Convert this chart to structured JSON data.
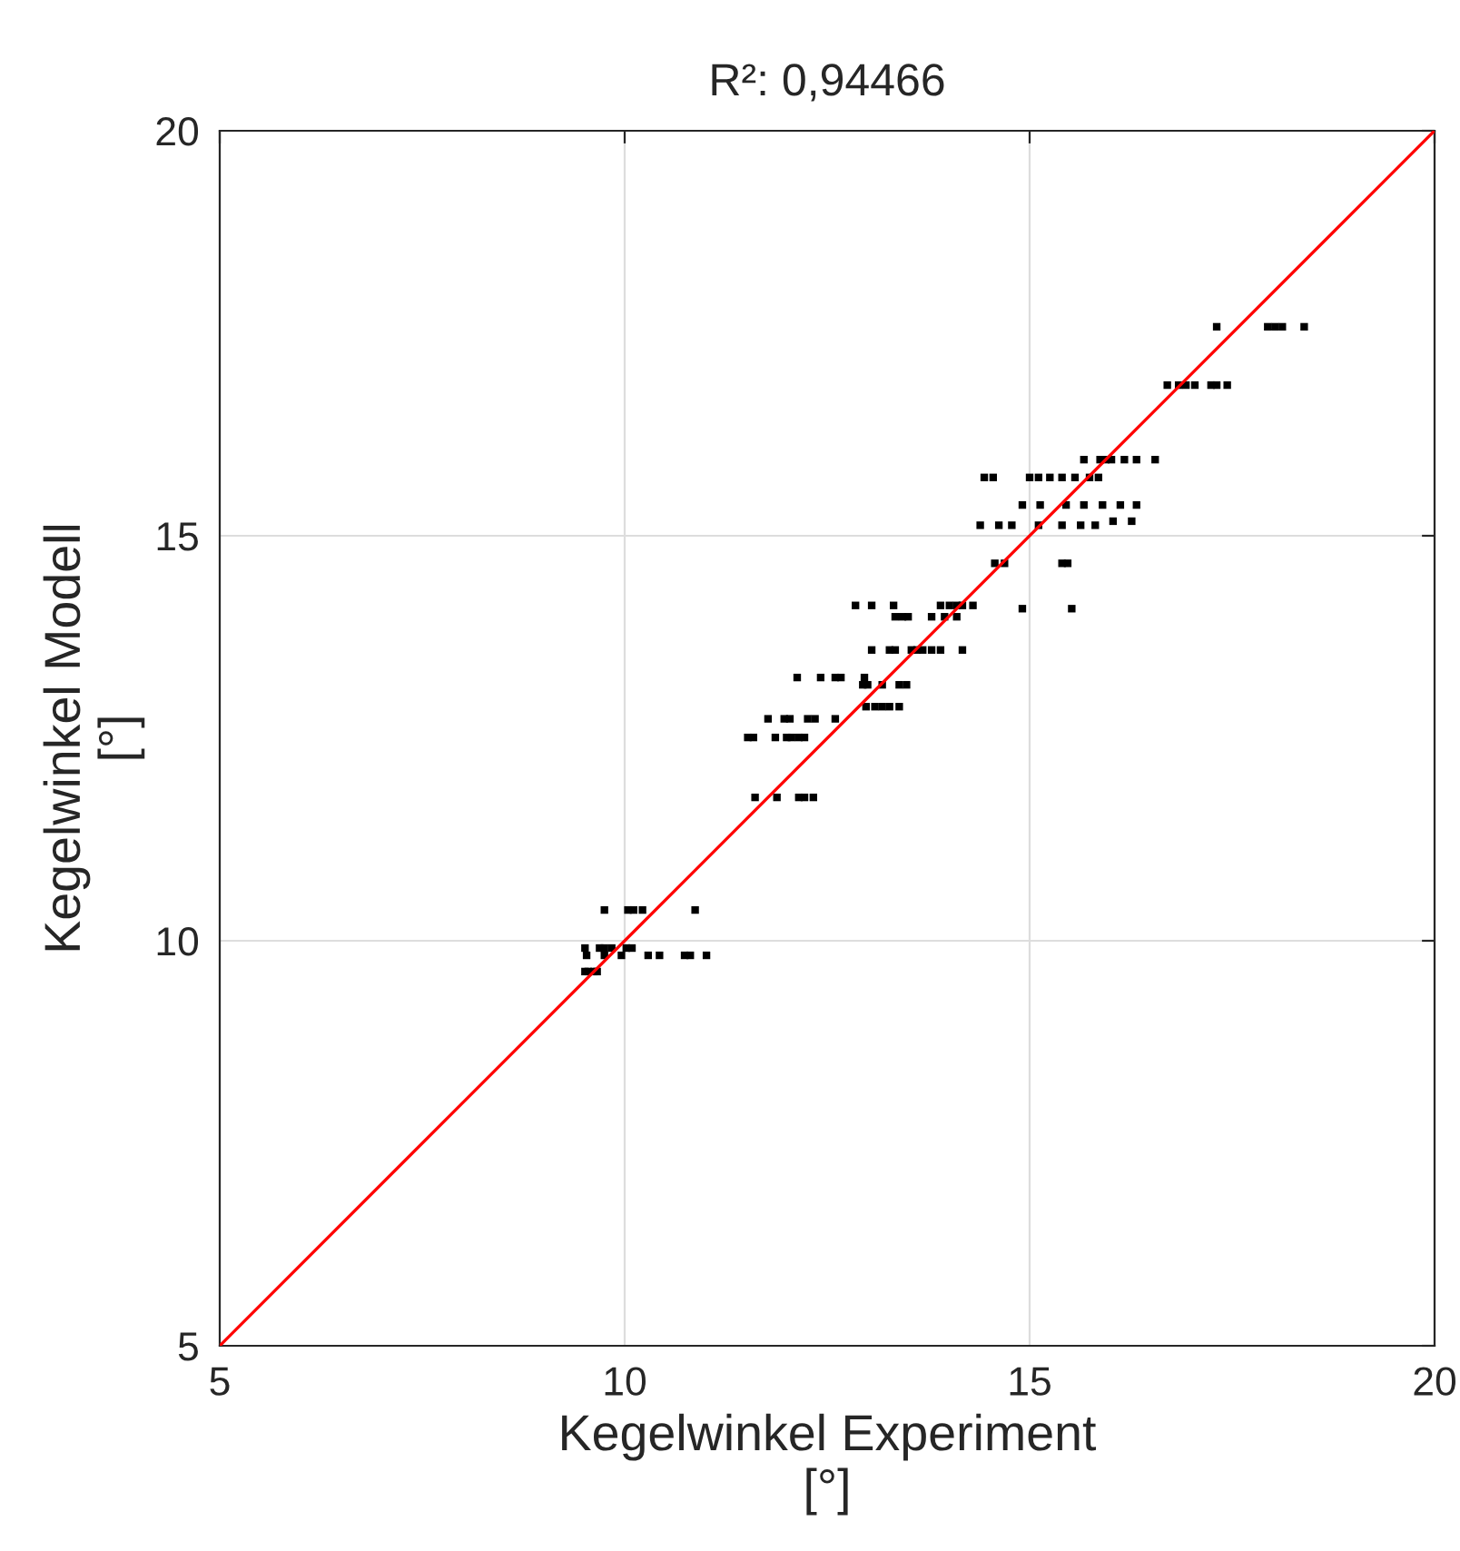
{
  "chart_data": {
    "type": "scatter",
    "title": "R²: 0,94466",
    "xlabel": "Kegelwinkel Experiment\n[°]",
    "ylabel": "Kegelwinkel Modell\n[°]",
    "xlim": [
      5,
      20
    ],
    "ylim": [
      5,
      20
    ],
    "xticks": [
      5,
      10,
      15,
      20
    ],
    "yticks": [
      5,
      10,
      15,
      20
    ],
    "grid": true,
    "marker": "square",
    "series": [
      {
        "color": "#000000",
        "x": [
          17.31,
          17.94,
          18.03,
          18.12,
          18.39,
          16.7,
          16.84,
          16.93,
          17.04,
          17.24,
          17.31,
          17.44,
          15.67,
          15.87,
          15.94,
          16.01,
          16.17,
          16.32,
          16.55,
          14.44,
          14.55,
          15.0,
          15.11,
          15.25,
          15.4,
          15.56,
          15.74,
          15.85,
          14.91,
          15.13,
          15.45,
          15.67,
          15.9,
          16.12,
          16.32,
          14.39,
          14.62,
          14.78,
          15.11,
          15.4,
          15.63,
          15.81,
          16.03,
          16.26,
          14.57,
          14.69,
          15.4,
          15.47,
          14.91,
          15.52,
          12.85,
          13.05,
          13.32,
          13.34,
          13.43,
          13.5,
          13.79,
          13.95,
          14.1,
          13.9,
          14.01,
          14.1,
          14.17,
          14.3,
          13.05,
          13.27,
          13.34,
          13.54,
          13.61,
          13.68,
          13.79,
          13.9,
          14.17,
          12.13,
          12.42,
          12.6,
          12.67,
          12.96,
          12.94,
          13.0,
          13.18,
          13.39,
          13.48,
          12.98,
          13.09,
          13.18,
          13.27,
          13.39,
          11.77,
          11.97,
          12.04,
          12.26,
          12.35,
          12.6,
          11.52,
          11.59,
          11.86,
          12.0,
          12.06,
          12.15,
          12.22,
          11.61,
          11.88,
          12.15,
          12.22,
          12.33,
          9.75,
          10.04,
          10.11,
          10.22,
          10.87,
          9.51,
          9.69,
          9.75,
          9.84,
          10.02,
          10.09,
          9.53,
          9.75,
          9.96,
          10.29,
          10.43,
          10.74,
          10.81,
          11.01,
          9.51,
          9.55,
          9.62,
          9.66
        ],
        "values": [
          17.58,
          17.58,
          17.58,
          17.58,
          17.58,
          16.86,
          16.86,
          16.86,
          16.86,
          16.86,
          16.86,
          16.86,
          15.94,
          15.94,
          15.94,
          15.94,
          15.94,
          15.94,
          15.94,
          15.72,
          15.72,
          15.72,
          15.72,
          15.72,
          15.72,
          15.72,
          15.72,
          15.72,
          15.38,
          15.38,
          15.38,
          15.38,
          15.38,
          15.38,
          15.38,
          15.13,
          15.13,
          15.13,
          15.13,
          15.13,
          15.13,
          15.13,
          15.18,
          15.18,
          14.66,
          14.66,
          14.66,
          14.66,
          14.1,
          14.1,
          14.14,
          14.14,
          14.14,
          14.0,
          14.0,
          14.0,
          14.0,
          14.0,
          14.0,
          14.14,
          14.14,
          14.14,
          14.14,
          14.14,
          13.59,
          13.59,
          13.59,
          13.59,
          13.59,
          13.59,
          13.59,
          13.59,
          13.59,
          13.25,
          13.25,
          13.25,
          13.25,
          13.25,
          13.16,
          13.16,
          13.16,
          13.16,
          13.16,
          12.89,
          12.89,
          12.89,
          12.89,
          12.89,
          12.74,
          12.74,
          12.74,
          12.74,
          12.74,
          12.74,
          12.51,
          12.51,
          12.51,
          12.51,
          12.51,
          12.51,
          12.51,
          11.77,
          11.77,
          11.77,
          11.77,
          11.77,
          10.38,
          10.38,
          10.38,
          10.38,
          10.38,
          9.91,
          9.91,
          9.91,
          9.91,
          9.91,
          9.91,
          9.82,
          9.82,
          9.82,
          9.82,
          9.82,
          9.82,
          9.82,
          9.82,
          9.62,
          9.62,
          9.62,
          9.62
        ]
      },
      {
        "type": "line",
        "color": "#ff0000",
        "marker": "none",
        "x": [
          5,
          20
        ],
        "values": [
          5,
          20
        ]
      }
    ]
  }
}
